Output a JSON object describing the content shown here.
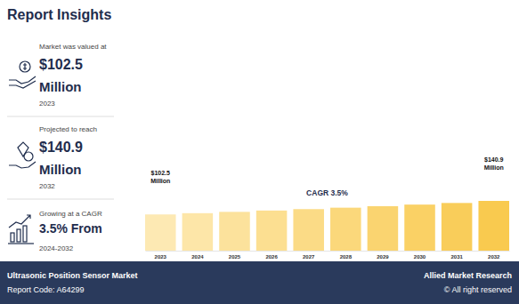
{
  "title": "Report Insights",
  "insights": [
    {
      "label": "Market was valued at",
      "value": "$102.5",
      "unit": "Million",
      "period": "2023"
    },
    {
      "label": "Projected to reach",
      "value": "$140.9",
      "unit": "Million",
      "period": "2032"
    },
    {
      "label": "Growing at a CAGR",
      "value": "3.5% From",
      "period": "2024-2032"
    }
  ],
  "chart_data": {
    "type": "bar",
    "categories": [
      "2023",
      "2024",
      "2025",
      "2026",
      "2027",
      "2028",
      "2029",
      "2030",
      "2031",
      "2032"
    ],
    "values": [
      102.5,
      106.1,
      109.8,
      113.6,
      117.6,
      121.7,
      126.0,
      130.4,
      135.0,
      140.9
    ],
    "colors": [
      "#fde9b3",
      "#fde6a8",
      "#fce29c",
      "#fcdf91",
      "#fbdb86",
      "#fbd87b",
      "#fad470",
      "#fad165",
      "#f9cd5a",
      "#f9ca4f"
    ],
    "ylim": [
      0,
      140.9
    ],
    "tick_labels": "x",
    "annotations": [
      {
        "text": "$102.5 Million",
        "x": "2023"
      },
      {
        "text": "$140.9 Million",
        "x": "2032"
      },
      {
        "text": "CAGR 3.5%"
      }
    ]
  },
  "footer": {
    "report_name": "Ultrasonic Position Sensor Market",
    "report_code": "Report Code: A64299",
    "publisher": "Allied Market Research",
    "rights": "© All right reserved"
  }
}
